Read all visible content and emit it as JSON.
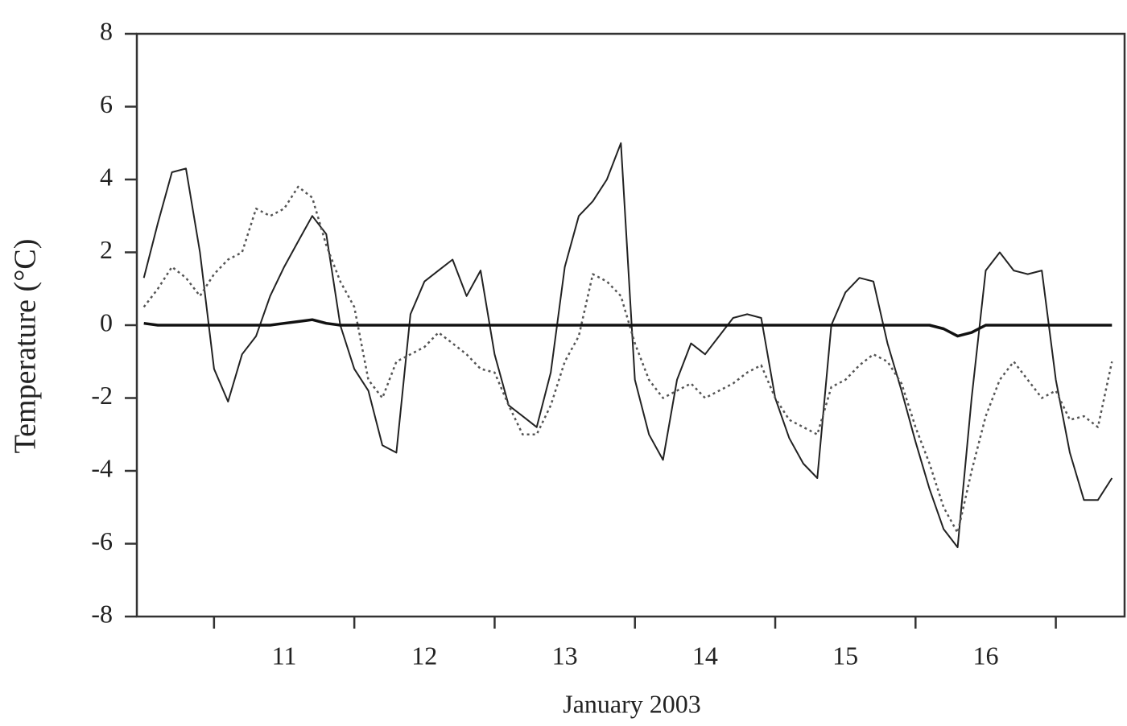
{
  "chart_data": {
    "type": "line",
    "xlabel": "January 2003",
    "ylabel": "Temperature (°C)",
    "x": [
      10.5,
      10.6,
      10.7,
      10.8,
      10.9,
      11.0,
      11.1,
      11.2,
      11.3,
      11.4,
      11.5,
      11.6,
      11.7,
      11.8,
      11.9,
      12.0,
      12.1,
      12.2,
      12.3,
      12.4,
      12.5,
      12.6,
      12.7,
      12.8,
      12.9,
      13.0,
      13.1,
      13.2,
      13.3,
      13.4,
      13.5,
      13.6,
      13.7,
      13.8,
      13.9,
      14.0,
      14.1,
      14.2,
      14.3,
      14.4,
      14.5,
      14.6,
      14.7,
      14.8,
      14.9,
      15.0,
      15.1,
      15.2,
      15.3,
      15.4,
      15.5,
      15.6,
      15.7,
      15.8,
      15.9,
      16.0,
      16.1,
      16.2,
      16.3,
      16.4,
      16.5,
      16.6,
      16.7,
      16.8,
      16.9,
      17.0,
      17.1,
      17.2,
      17.3,
      17.4
    ],
    "series": [
      {
        "color": "#222222",
        "style": "solid",
        "width": 2,
        "values": [
          1.3,
          2.8,
          4.2,
          4.3,
          2.0,
          -1.2,
          -2.1,
          -0.8,
          -0.3,
          0.8,
          1.6,
          2.3,
          3.0,
          2.5,
          0.0,
          -1.2,
          -1.8,
          -3.3,
          -3.5,
          0.3,
          1.2,
          1.5,
          1.8,
          0.8,
          1.5,
          -0.8,
          -2.2,
          -2.5,
          -2.8,
          -1.3,
          1.6,
          3.0,
          3.4,
          4.0,
          5.0,
          -1.5,
          -3.0,
          -3.7,
          -1.5,
          -0.5,
          -0.8,
          -0.3,
          0.2,
          0.3,
          0.2,
          -2.0,
          -3.1,
          -3.8,
          -4.2,
          0.0,
          0.9,
          1.3,
          1.2,
          -0.5,
          -1.8,
          -3.2,
          -4.5,
          -5.6,
          -6.1,
          -2.0,
          1.5,
          2.0,
          1.5,
          1.4,
          1.5,
          -1.5,
          -3.5,
          -4.8,
          -4.8,
          -4.2
        ]
      },
      {
        "color": "#555555",
        "style": "dotted",
        "width": 2.5,
        "values": [
          0.5,
          1.0,
          1.6,
          1.3,
          0.8,
          1.4,
          1.8,
          2.0,
          3.2,
          3.0,
          3.2,
          3.8,
          3.5,
          2.2,
          1.2,
          0.5,
          -1.5,
          -2.0,
          -1.0,
          -0.8,
          -0.6,
          -0.2,
          -0.5,
          -0.8,
          -1.2,
          -1.3,
          -2.2,
          -3.0,
          -3.0,
          -2.2,
          -1.0,
          -0.3,
          1.4,
          1.2,
          0.8,
          -0.5,
          -1.5,
          -2.0,
          -1.8,
          -1.6,
          -2.0,
          -1.8,
          -1.6,
          -1.3,
          -1.1,
          -2.0,
          -2.6,
          -2.8,
          -3.0,
          -1.7,
          -1.5,
          -1.1,
          -0.8,
          -1.0,
          -1.6,
          -2.8,
          -3.8,
          -5.0,
          -5.7,
          -4.0,
          -2.5,
          -1.5,
          -1.0,
          -1.5,
          -2.0,
          -1.8,
          -2.6,
          -2.5,
          -2.8,
          -1.0
        ]
      },
      {
        "color": "#111111",
        "style": "solid",
        "width": 3.5,
        "values": [
          0.05,
          0,
          0,
          0,
          0,
          0,
          0,
          0,
          0,
          0,
          0.05,
          0.1,
          0.15,
          0.05,
          0,
          0,
          0,
          0,
          0,
          0,
          0,
          0,
          0,
          0,
          0,
          0,
          0,
          0,
          0,
          0,
          0,
          0,
          0,
          0,
          0,
          0,
          0,
          0,
          0,
          0,
          0,
          0,
          0,
          0,
          0,
          0,
          0,
          0,
          0,
          0,
          0,
          0,
          0,
          0,
          0,
          0,
          0,
          -0.1,
          -0.3,
          -0.2,
          0,
          0,
          0,
          0,
          0,
          0,
          0,
          0,
          0,
          0
        ]
      }
    ],
    "xlim": [
      10.45,
      17.49
    ],
    "xticks": [
      11,
      12,
      13,
      14,
      15,
      16
    ],
    "ylim": [
      -8,
      8
    ],
    "yticks": [
      -8,
      -6,
      -4,
      -2,
      0,
      2,
      4,
      6,
      8
    ],
    "grid": false
  }
}
